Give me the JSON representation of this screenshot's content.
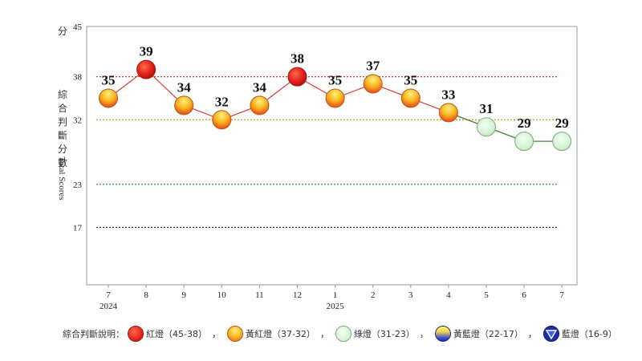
{
  "chart_data": {
    "type": "line",
    "categories": [
      "7",
      "8",
      "9",
      "10",
      "11",
      "12",
      "1",
      "2",
      "3",
      "4",
      "5",
      "6",
      "7"
    ],
    "year_labels": [
      {
        "index": 0,
        "label": "2024"
      },
      {
        "index": 6,
        "label": "2025"
      }
    ],
    "values": [
      35,
      39,
      34,
      32,
      34,
      38,
      35,
      37,
      35,
      33,
      31,
      29,
      29
    ],
    "signals": [
      "yellow-red",
      "red",
      "yellow-red",
      "yellow-red",
      "yellow-red",
      "red",
      "yellow-red",
      "yellow-red",
      "yellow-red",
      "yellow-red",
      "green",
      "green",
      "green"
    ],
    "ylim": [
      9,
      45
    ],
    "yticks": [
      17,
      23,
      32,
      38,
      45
    ],
    "ylabel_unit": "分",
    "ylabel_cjk": "綜合判斷分數",
    "ylabel_en": "Total Scores",
    "threshold_lines": [
      {
        "value": 38,
        "color": "#d43a3a"
      },
      {
        "value": 32,
        "color": "#c9901a"
      },
      {
        "value": 23,
        "color": "#2a9a2a"
      },
      {
        "value": 17,
        "color": "#2a2a8a"
      }
    ],
    "line_colors": {
      "red_zone": "#d94a4a",
      "green_zone": "#4a7a3a"
    }
  },
  "legend": {
    "title": "綜合判斷說明：",
    "separator": "，",
    "items": [
      {
        "label": "紅燈（45-38）",
        "icon": "red-light-icon"
      },
      {
        "label": "黃紅燈（37-32）",
        "icon": "yellow-red-light-icon"
      },
      {
        "label": "綠燈（31-23）",
        "icon": "green-light-icon"
      },
      {
        "label": "黃藍燈（22-17）",
        "icon": "yellow-blue-light-icon"
      },
      {
        "label": "藍燈（16-9）",
        "icon": "blue-light-icon"
      }
    ]
  }
}
